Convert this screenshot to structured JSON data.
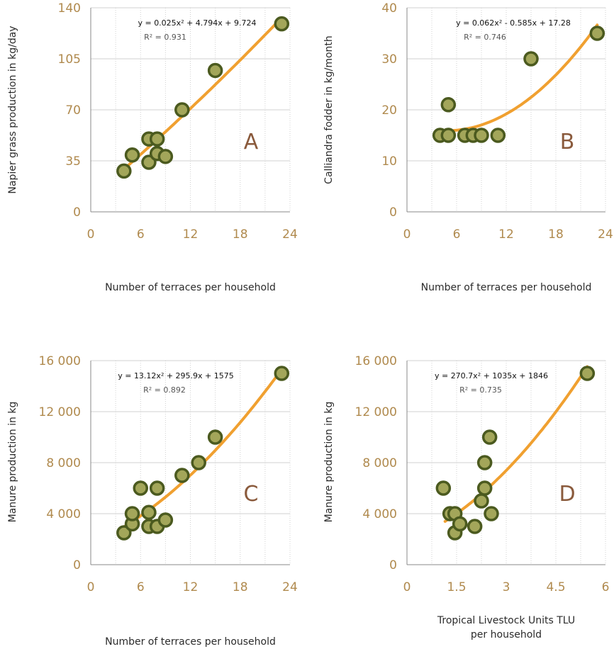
{
  "colors": {
    "tick_label": "#b08a4e",
    "grid": "#d0d0d0",
    "axis": "#888888",
    "trend_line": "#f0a030",
    "marker_fill": "#a3a65a",
    "marker_stroke": "#4b5a1f",
    "panel_letter": "#8a5a3c"
  },
  "chart_data": [
    {
      "type": "scatter",
      "panel": "A",
      "xlabel": "Number of terraces per household",
      "ylabel": "Napier grass production in kg/day",
      "xlim": [
        0,
        24
      ],
      "ylim": [
        0,
        140
      ],
      "x_ticks": [
        0,
        6,
        12,
        18,
        24
      ],
      "x_tick_labels": [
        "0",
        "6",
        "12",
        "18",
        "24"
      ],
      "y_ticks": [
        0,
        35,
        70,
        105,
        140
      ],
      "y_tick_labels": [
        "0",
        "35",
        "70",
        "105",
        "140"
      ],
      "grid": true,
      "equation": "y = 0.025x² + 4.794x + 9.724",
      "r2": "R² = 0.931",
      "trend": {
        "coef": [
          0.025,
          4.794,
          9.724
        ],
        "x_range": [
          4,
          23
        ]
      },
      "points": [
        {
          "x": 4,
          "y": 28
        },
        {
          "x": 5,
          "y": 39
        },
        {
          "x": 7,
          "y": 50
        },
        {
          "x": 8,
          "y": 50
        },
        {
          "x": 7,
          "y": 34
        },
        {
          "x": 8,
          "y": 40
        },
        {
          "x": 9,
          "y": 38
        },
        {
          "x": 11,
          "y": 70
        },
        {
          "x": 15,
          "y": 97
        },
        {
          "x": 23,
          "y": 129
        }
      ]
    },
    {
      "type": "scatter",
      "panel": "B",
      "xlabel": "Number of terraces per household",
      "ylabel": "Calliandra fodder in kg/month",
      "xlim": [
        0,
        24
      ],
      "ylim": [
        0,
        40
      ],
      "x_ticks": [
        0,
        6,
        12,
        18,
        24
      ],
      "x_tick_labels": [
        "0",
        "6",
        "12",
        "18",
        "24"
      ],
      "y_ticks": [
        0,
        10,
        20,
        30,
        40
      ],
      "y_tick_labels": [
        "0",
        "10",
        "20",
        "30",
        "40"
      ],
      "grid": true,
      "equation": "y = 0.062x²  - 0.585x + 17.28",
      "r2": "R² = 0.746",
      "trend": {
        "coef": [
          0.062,
          -0.585,
          17.28
        ],
        "x_range": [
          4,
          23
        ]
      },
      "points": [
        {
          "x": 4,
          "y": 15
        },
        {
          "x": 5,
          "y": 15
        },
        {
          "x": 5,
          "y": 21
        },
        {
          "x": 7,
          "y": 15
        },
        {
          "x": 8,
          "y": 15
        },
        {
          "x": 9,
          "y": 15
        },
        {
          "x": 11,
          "y": 15
        },
        {
          "x": 15,
          "y": 30
        },
        {
          "x": 23,
          "y": 35
        }
      ]
    },
    {
      "type": "scatter",
      "panel": "C",
      "xlabel": "Number of terraces per household",
      "ylabel": "Manure production in kg",
      "xlim": [
        0,
        24
      ],
      "ylim": [
        0,
        16000
      ],
      "x_ticks": [
        0,
        6,
        12,
        18,
        24
      ],
      "x_tick_labels": [
        "0",
        "6",
        "12",
        "18",
        "24"
      ],
      "y_ticks": [
        0,
        4000,
        8000,
        12000,
        16000
      ],
      "y_tick_labels": [
        "0",
        "4 000",
        "8 000",
        "12 000",
        "16 000"
      ],
      "grid": true,
      "equation": "y = 13.12x² + 295.9x + 1575",
      "r2": "R² = 0.892",
      "trend": {
        "coef": [
          13.12,
          295.9,
          1575
        ],
        "x_range": [
          4,
          23
        ]
      },
      "points": [
        {
          "x": 4,
          "y": 2500
        },
        {
          "x": 5,
          "y": 3200
        },
        {
          "x": 5,
          "y": 4000
        },
        {
          "x": 6,
          "y": 6000
        },
        {
          "x": 7,
          "y": 3000
        },
        {
          "x": 7,
          "y": 4100
        },
        {
          "x": 8,
          "y": 3000
        },
        {
          "x": 8,
          "y": 6000
        },
        {
          "x": 9,
          "y": 3500
        },
        {
          "x": 11,
          "y": 7000
        },
        {
          "x": 13,
          "y": 8000
        },
        {
          "x": 15,
          "y": 10000
        },
        {
          "x": 23,
          "y": 15000
        }
      ]
    },
    {
      "type": "scatter",
      "panel": "D",
      "xlabel": "Tropical Livestock Units TLU per household",
      "xlabel_lines": [
        "Tropical Livestock Units TLU",
        "per household"
      ],
      "ylabel": "Manure production in kg",
      "xlim": [
        0,
        6
      ],
      "ylim": [
        0,
        16000
      ],
      "x_ticks": [
        0,
        1.5,
        3,
        4.5,
        6
      ],
      "x_tick_labels": [
        "0",
        "1.5",
        "3",
        "4.5",
        "6"
      ],
      "y_ticks": [
        0,
        4000,
        8000,
        12000,
        16000
      ],
      "y_tick_labels": [
        "0",
        "4 000",
        "8 000",
        "12 000",
        "16 000"
      ],
      "grid": true,
      "equation": "y = 270.7x² + 1035x + 1846",
      "r2": "R² = 0.735",
      "trend": {
        "coef": [
          270.7,
          1035,
          1846
        ],
        "x_range": [
          1.15,
          5.45
        ]
      },
      "points": [
        {
          "x": 1.1,
          "y": 6000
        },
        {
          "x": 1.3,
          "y": 4000
        },
        {
          "x": 1.45,
          "y": 4000
        },
        {
          "x": 1.45,
          "y": 2500
        },
        {
          "x": 1.6,
          "y": 3200
        },
        {
          "x": 2.05,
          "y": 3000
        },
        {
          "x": 2.25,
          "y": 5000
        },
        {
          "x": 2.35,
          "y": 8000
        },
        {
          "x": 2.35,
          "y": 6000
        },
        {
          "x": 2.5,
          "y": 10000
        },
        {
          "x": 2.55,
          "y": 4000
        },
        {
          "x": 5.45,
          "y": 15000
        }
      ]
    }
  ]
}
